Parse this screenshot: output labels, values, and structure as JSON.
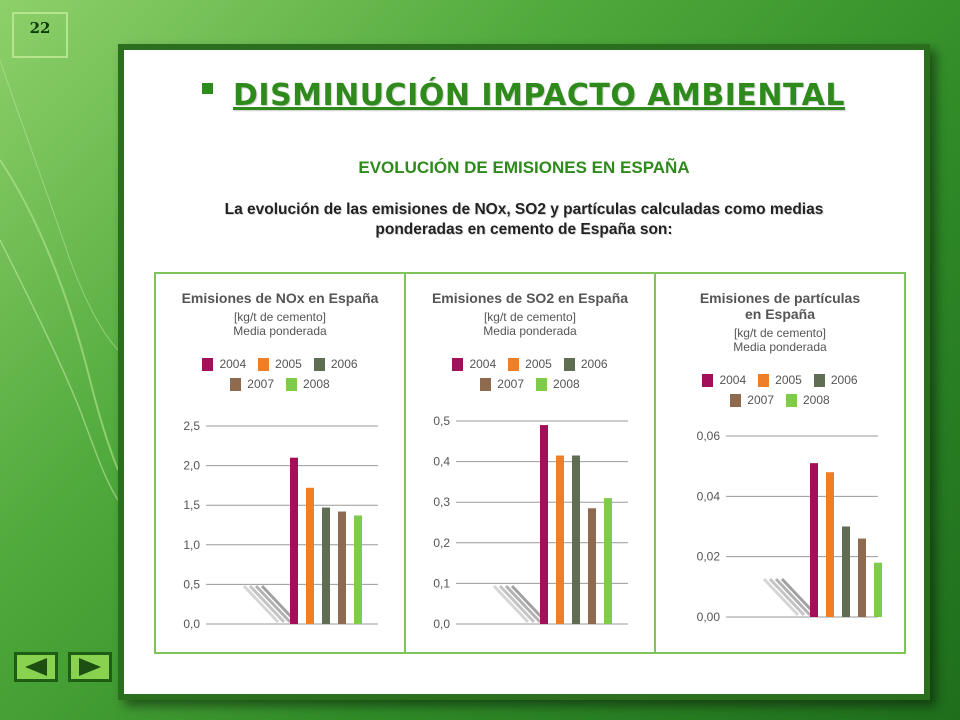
{
  "slide_number": "22",
  "title": "DISMINUCIÓN IMPACTO AMBIENTAL",
  "subtitle": "EVOLUCIÓN DE EMISIONES EN ESPAÑA",
  "intro": {
    "line1": "La evolución de las emisiones de NOx, SO2 y partículas calculadas como medias",
    "line2": "ponderadas en cemento de España son:"
  },
  "nav": {
    "prev_icon": "arrow-left-icon",
    "next_icon": "arrow-right-icon"
  },
  "colors": {
    "2004": "#a3105a",
    "2005": "#ee7f27",
    "2006": "#5f6d52",
    "2007": "#8e6a4e",
    "2008": "#7fcb4b"
  },
  "chart_data": [
    {
      "type": "bar",
      "title_line1": "Emisiones de NOx en España",
      "title_line2": "",
      "unit": "[kg/t de cemento]",
      "note": "Media ponderada",
      "categories": [
        "2004",
        "2005",
        "2006",
        "2007",
        "2008"
      ],
      "values": [
        2.1,
        1.72,
        1.47,
        1.42,
        1.37
      ],
      "yticks": [
        "2,5",
        "2,0",
        "1,5",
        "1,0",
        "0,5",
        "0,0"
      ],
      "ylim": [
        0,
        2.5
      ],
      "legend": [
        "2004",
        "2005",
        "2006",
        "2007",
        "2008"
      ],
      "grid": true
    },
    {
      "type": "bar",
      "title_line1": "Emisiones de SO2 en España",
      "title_line2": "",
      "unit": "[kg/t de cemento]",
      "note": "Media ponderada",
      "categories": [
        "2004",
        "2005",
        "2006",
        "2007",
        "2008"
      ],
      "values": [
        0.49,
        0.415,
        0.415,
        0.285,
        0.31
      ],
      "yticks": [
        "0,5",
        "0,4",
        "0,3",
        "0,2",
        "0,1",
        "0,0"
      ],
      "ylim": [
        0,
        0.5
      ],
      "legend": [
        "2004",
        "2005",
        "2006",
        "2007",
        "2008"
      ],
      "grid": true
    },
    {
      "type": "bar",
      "title_line1": "Emisiones de partículas",
      "title_line2": "en España",
      "unit": "[kg/t de cemento]",
      "note": "Media ponderada",
      "categories": [
        "2004",
        "2005",
        "2006",
        "2007",
        "2008"
      ],
      "values": [
        0.051,
        0.048,
        0.03,
        0.026,
        0.018
      ],
      "yticks": [
        "0,06",
        "0,04",
        "0,02",
        "0,00"
      ],
      "ylim": [
        0,
        0.06
      ],
      "legend": [
        "2004",
        "2005",
        "2006",
        "2007",
        "2008"
      ],
      "grid": true
    }
  ]
}
